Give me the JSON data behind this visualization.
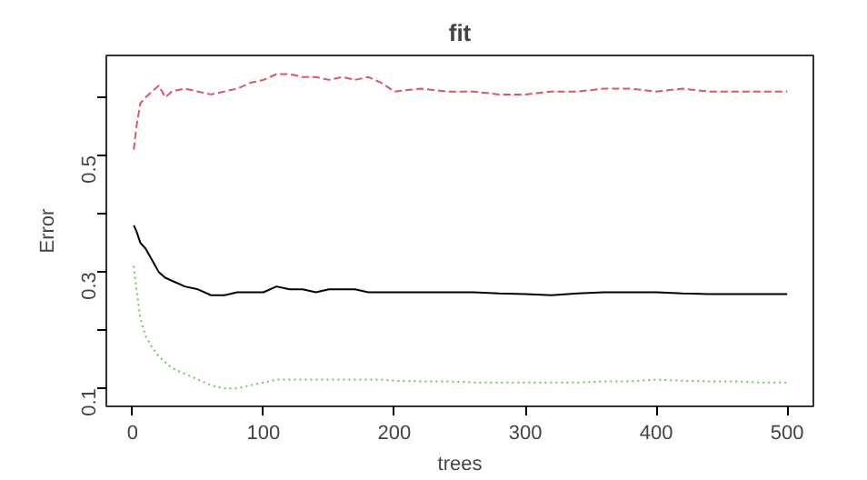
{
  "chart_data": {
    "type": "line",
    "title": "fit",
    "xlabel": "trees",
    "ylabel": "Error",
    "x": [
      1,
      3,
      6,
      10,
      15,
      20,
      25,
      30,
      40,
      50,
      60,
      70,
      80,
      90,
      100,
      110,
      120,
      130,
      140,
      150,
      160,
      170,
      180,
      190,
      200,
      220,
      240,
      260,
      280,
      300,
      320,
      340,
      360,
      380,
      400,
      420,
      440,
      460,
      480,
      500
    ],
    "series": [
      {
        "color": "#000000",
        "line_style": "solid",
        "values": [
          0.38,
          0.37,
          0.35,
          0.34,
          0.32,
          0.3,
          0.29,
          0.285,
          0.275,
          0.27,
          0.26,
          0.26,
          0.265,
          0.265,
          0.265,
          0.275,
          0.27,
          0.27,
          0.265,
          0.27,
          0.27,
          0.27,
          0.265,
          0.265,
          0.265,
          0.265,
          0.265,
          0.265,
          0.263,
          0.262,
          0.26,
          0.263,
          0.265,
          0.265,
          0.265,
          0.263,
          0.262,
          0.262,
          0.262,
          0.262
        ]
      },
      {
        "color": "#df536b",
        "line_style": "dashed",
        "values": [
          0.51,
          0.55,
          0.59,
          0.6,
          0.61,
          0.62,
          0.6,
          0.61,
          0.615,
          0.61,
          0.605,
          0.61,
          0.615,
          0.625,
          0.63,
          0.64,
          0.64,
          0.635,
          0.635,
          0.63,
          0.635,
          0.63,
          0.635,
          0.625,
          0.61,
          0.615,
          0.61,
          0.61,
          0.605,
          0.605,
          0.61,
          0.61,
          0.615,
          0.615,
          0.61,
          0.615,
          0.61,
          0.61,
          0.61,
          0.61
        ]
      },
      {
        "color": "#61d04f",
        "line_style": "dotted",
        "values": [
          0.31,
          0.27,
          0.22,
          0.19,
          0.17,
          0.155,
          0.145,
          0.135,
          0.125,
          0.115,
          0.105,
          0.1,
          0.1,
          0.105,
          0.11,
          0.115,
          0.115,
          0.115,
          0.115,
          0.115,
          0.115,
          0.115,
          0.115,
          0.115,
          0.113,
          0.112,
          0.112,
          0.11,
          0.11,
          0.11,
          0.11,
          0.11,
          0.112,
          0.112,
          0.115,
          0.113,
          0.112,
          0.112,
          0.11,
          0.11
        ]
      }
    ],
    "xlim": [
      -20,
      520
    ],
    "ylim": [
      0.069,
      0.672
    ],
    "xticks": [
      0,
      100,
      200,
      300,
      400,
      500
    ],
    "yticks": [
      0.1,
      {
        "value": 0.2,
        "label": null
      },
      0.3,
      {
        "value": 0.4,
        "label": null
      },
      0.5,
      {
        "value": 0.6,
        "label": null
      }
    ],
    "grid": false,
    "marker": "none"
  }
}
